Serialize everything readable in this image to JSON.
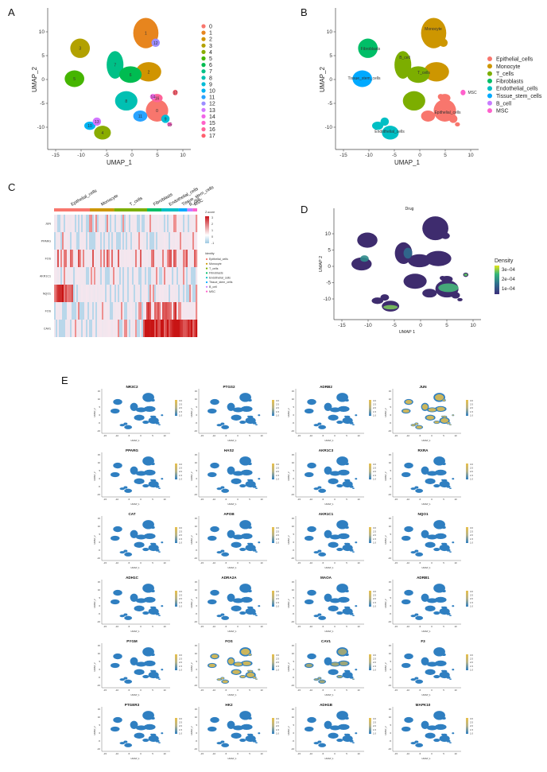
{
  "panels": {
    "A": {
      "label": "A",
      "xlabel": "UMAP_1",
      "ylabel": "UMAP_2",
      "xticks": [
        "-15",
        "-10",
        "-5",
        "0",
        "5",
        "10"
      ],
      "yticks": [
        "10",
        "5",
        "0",
        "-5",
        "-10"
      ],
      "legend": [
        "0",
        "1",
        "2",
        "3",
        "4",
        "5",
        "6",
        "7",
        "8",
        "9",
        "10",
        "11",
        "12",
        "13",
        "14",
        "15",
        "16",
        "17"
      ]
    },
    "B": {
      "label": "B",
      "xlabel": "UMAP_1",
      "ylabel": "UMAP_2",
      "xticks": [
        "-15",
        "-10",
        "-5",
        "0",
        "5",
        "10"
      ],
      "yticks": [
        "10",
        "5",
        "0",
        "-5",
        "-10"
      ],
      "legend": [
        "Epithelial_cells",
        "Monocyte",
        "T_cells",
        "Fibroblasts",
        "Endothelial_cells",
        "Tissue_stem_cells",
        "B_cell",
        "MSC"
      ],
      "cluster_labels": [
        "Monocyte",
        "Fibroblasts",
        "B_cell",
        "T_cells",
        "Tissue_stem_cells",
        "MSC",
        "Epithelial_cells",
        "Endothelial_cells"
      ]
    },
    "C": {
      "label": "C",
      "groups": [
        "Epithelial_cells",
        "Monocyte",
        "T_cells",
        "Fibroblasts",
        "Endothelial_cells",
        "Tissue_stem_cells",
        "B_cell",
        "MSC"
      ],
      "genes": [
        "JUN",
        "PPARG",
        "FOS",
        "AKR1C1",
        "NQO1",
        "FOS",
        "CAV1"
      ],
      "zscore_title": "Z-score",
      "zscore_ticks": [
        "3",
        "2",
        "1",
        "0",
        "-1"
      ],
      "identity_title": "Identity",
      "identity_items": [
        "Epithelial_cells",
        "Monocyte",
        "T_cells",
        "Fibroblasts",
        "Endothelial_cells",
        "Tissue_stem_cells",
        "B_cell",
        "MSC"
      ]
    },
    "D": {
      "label": "D",
      "title": "Drug",
      "xlabel": "UMAP 1",
      "ylabel": "UMAP 2",
      "xticks": [
        "-15",
        "-10",
        "-5",
        "0",
        "5",
        "10"
      ],
      "yticks": [
        "10",
        "5",
        "0",
        "-5",
        "-10"
      ],
      "legend_title": "Density",
      "legend_ticks": [
        "3e−04",
        "2e−04",
        "1e−04"
      ]
    },
    "E": {
      "label": "E",
      "genes": [
        "NR3C2",
        "PTGS2",
        "ADRB2",
        "JUN",
        "PPARG",
        "HAS2",
        "AKR1C3",
        "RXRA",
        "CAT",
        "APOB",
        "AKR1C1",
        "NQO1",
        "ADH1C",
        "ADRA2A",
        "MAOA",
        "ADRB1",
        "PYGM",
        "FOS",
        "CAV1",
        "F3",
        "PTGER3",
        "HK2",
        "ADH1B",
        "MAPK10"
      ],
      "xlabel": "UMAP_1",
      "ylabel": "UMAP_2",
      "xticks": [
        "-15",
        "-10",
        "-5",
        "0",
        "5",
        "10"
      ],
      "yticks": [
        "15",
        "10",
        "5",
        "0",
        "-5",
        "-10"
      ],
      "scale_ticks": [
        "3.0",
        "2.5",
        "2.0",
        "1.5",
        "1.0"
      ]
    }
  },
  "colors": {
    "clusters": [
      "#f8766d",
      "#e7851e",
      "#d09400",
      "#b2a100",
      "#89ac00",
      "#45b500",
      "#00bc51",
      "#00c087",
      "#00c0b2",
      "#00bcd6",
      "#00b3f2",
      "#29a3ff",
      "#9c8dff",
      "#d277ff",
      "#f166e8",
      "#ff61c7",
      "#ff6399",
      "#ff5f6e"
    ],
    "celltypes": [
      "#f8766d",
      "#cd9600",
      "#7cae00",
      "#00be67",
      "#00bfc4",
      "#00a9ff",
      "#c77cff",
      "#ff61cc"
    ],
    "feature_blue": "#2f7fc1",
    "feature_yellow": "#e8c04a"
  }
}
